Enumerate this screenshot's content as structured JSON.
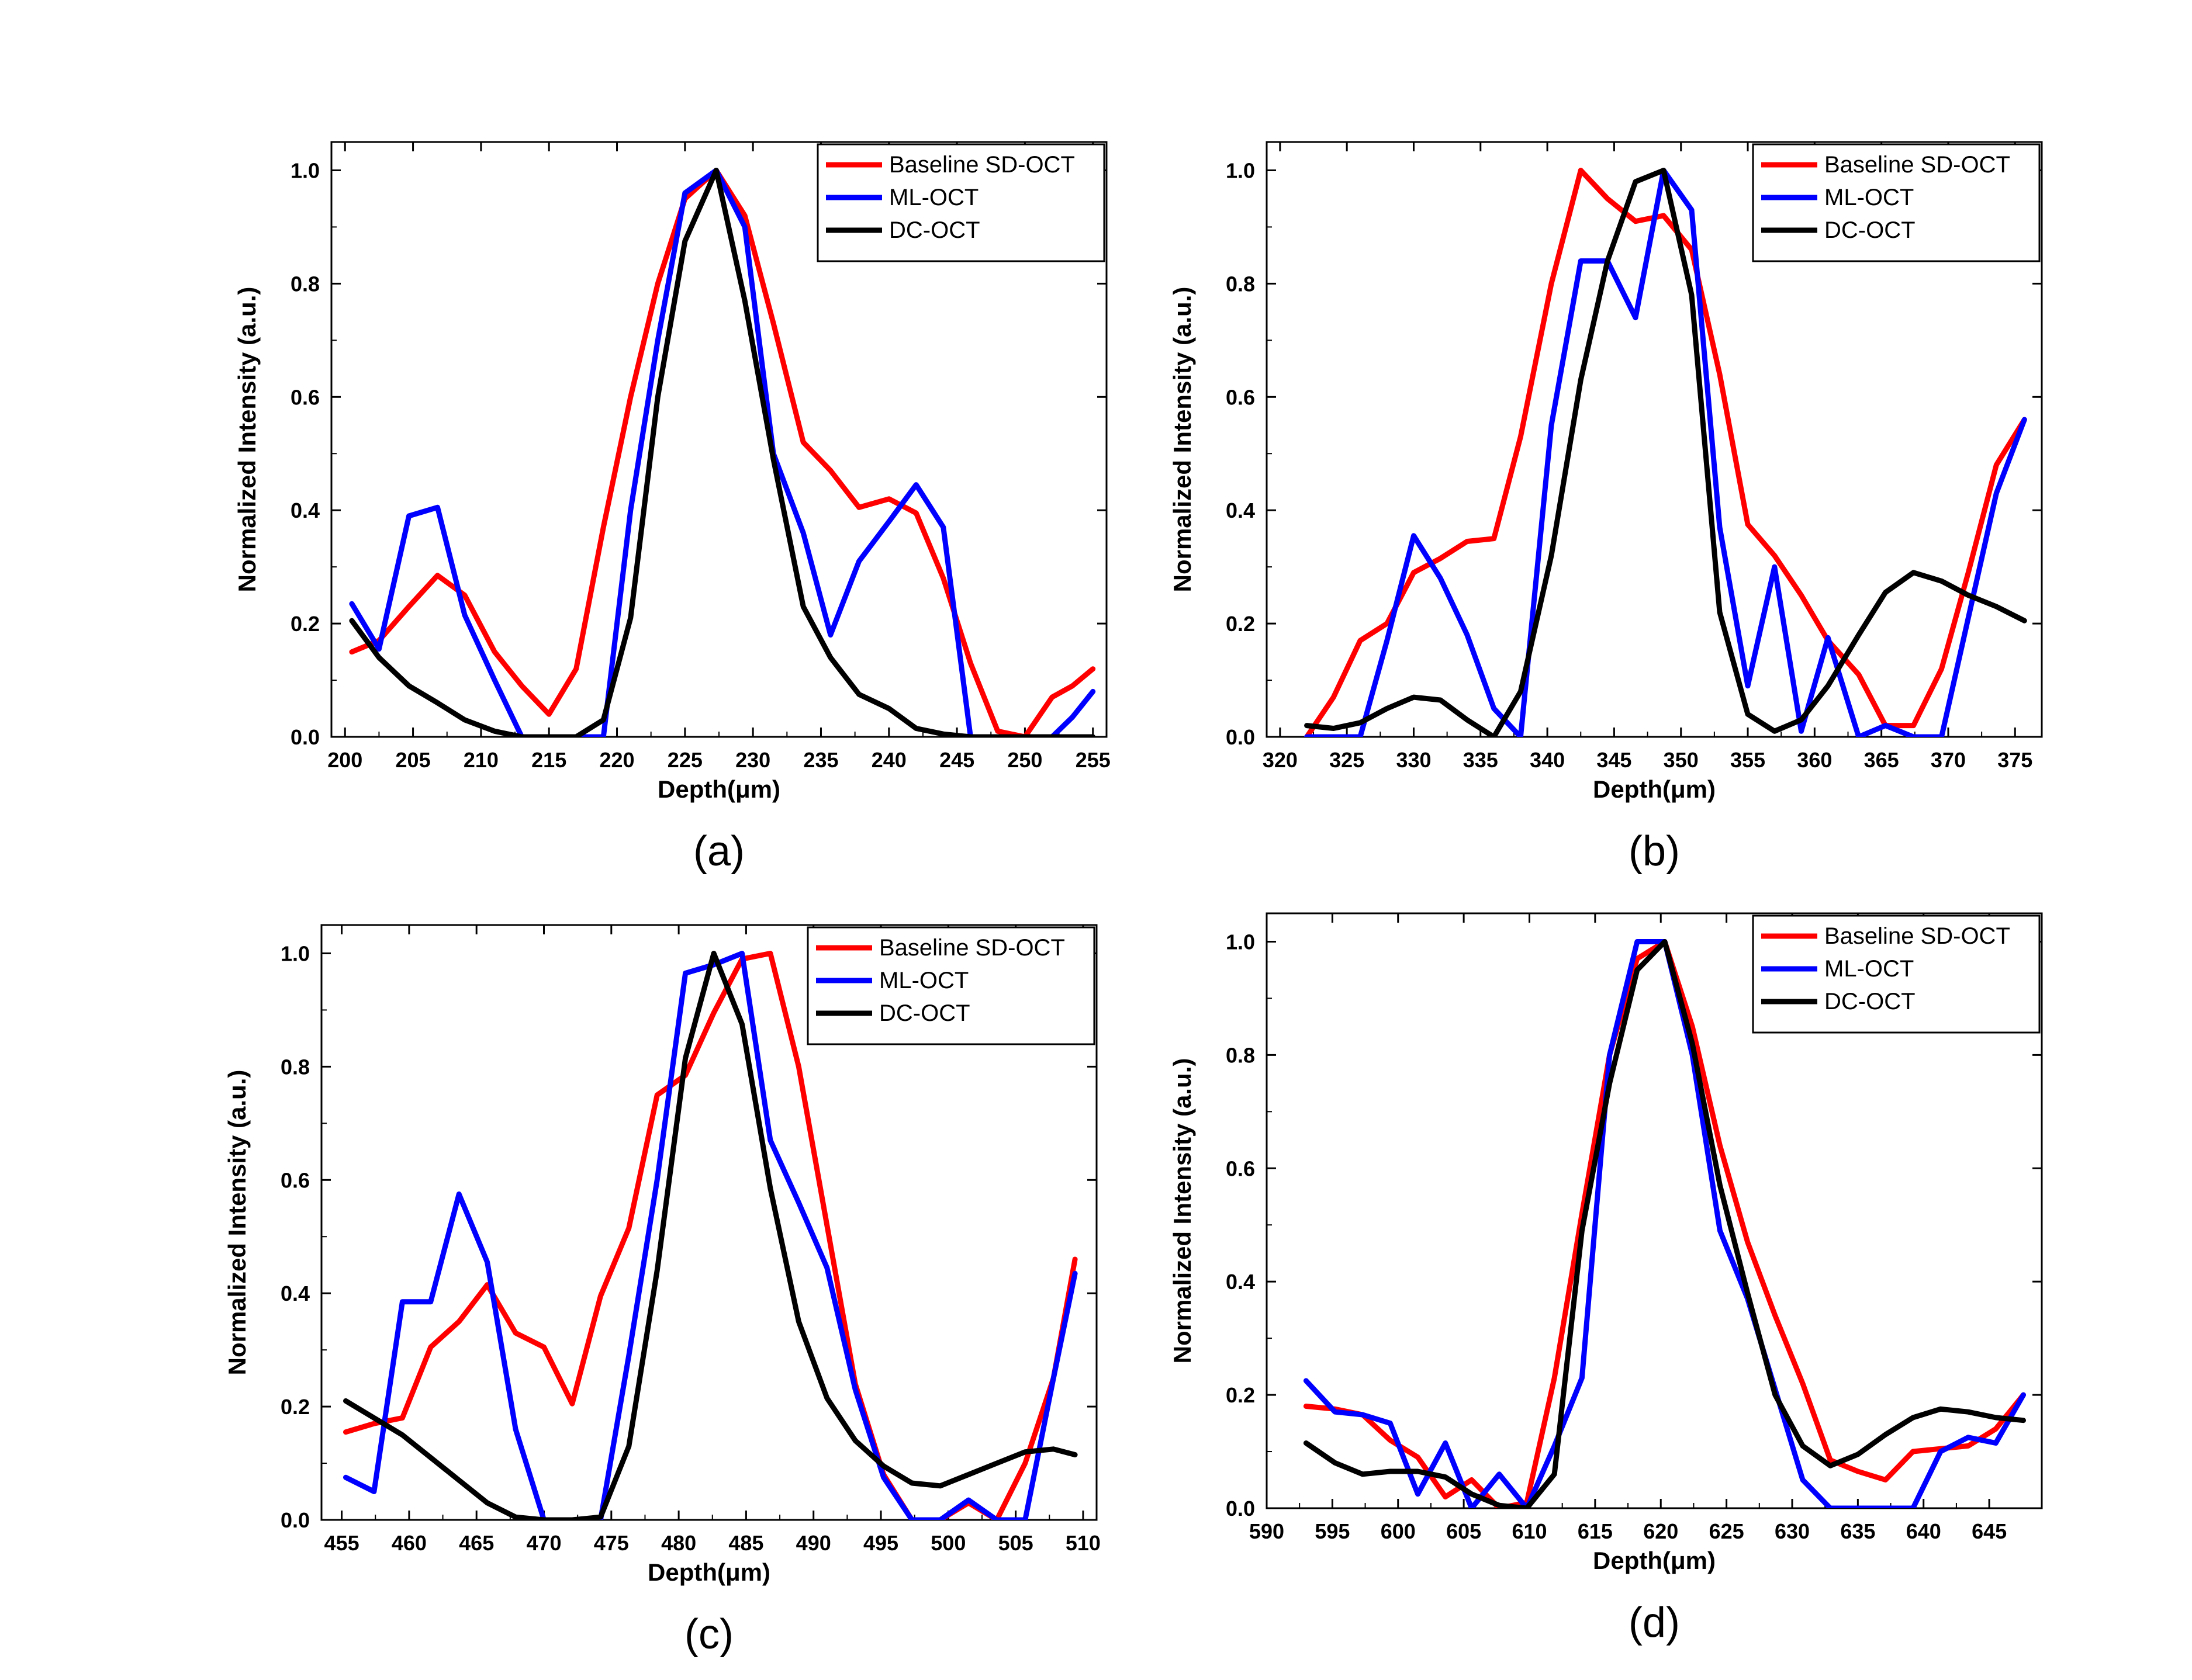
{
  "figure": {
    "title": ""
  },
  "chart_data": [
    {
      "type": "line",
      "panel_label": "(a)",
      "xlabel": "Depth(μm)",
      "ylabel": "Normalized Intensity (a.u.)",
      "xlim": [
        199,
        256
      ],
      "ylim": [
        0,
        1.05
      ],
      "xticks": [
        200,
        205,
        210,
        215,
        220,
        225,
        230,
        235,
        240,
        245,
        250,
        255
      ],
      "yticks": [
        0.0,
        0.2,
        0.4,
        0.6,
        0.8,
        1.0
      ],
      "ytick_labels": [
        "0.0",
        "0.2",
        "0.4",
        "0.6",
        "0.8",
        "1.0"
      ],
      "legend_position": "top-right",
      "series": [
        {
          "name": "Baseline SD-OCT",
          "color": "#ff0000",
          "x": [
            200.5,
            202.5,
            204.7,
            206.8,
            208.8,
            211,
            213,
            215,
            217,
            219,
            221,
            223,
            225,
            227.3,
            229.4,
            231.5,
            233.7,
            235.7,
            237.8,
            240,
            242,
            244,
            246,
            248,
            250,
            252,
            253.5,
            255
          ],
          "y": [
            0.15,
            0.17,
            0.23,
            0.285,
            0.25,
            0.15,
            0.09,
            0.04,
            0.12,
            0.37,
            0.6,
            0.8,
            0.95,
            1.0,
            0.92,
            0.73,
            0.52,
            0.47,
            0.405,
            0.42,
            0.395,
            0.28,
            0.13,
            0.01,
            0.0,
            0.07,
            0.09,
            0.12
          ]
        },
        {
          "name": "ML-OCT",
          "color": "#0000ff",
          "x": [
            200.5,
            202.5,
            204.7,
            206.8,
            208.8,
            211,
            213,
            215,
            217,
            219,
            221,
            223,
            225,
            227.3,
            229.4,
            231.5,
            233.7,
            235.7,
            237.8,
            240,
            242,
            244,
            246,
            248,
            250,
            252,
            253.5,
            255
          ],
          "y": [
            0.235,
            0.155,
            0.39,
            0.405,
            0.215,
            0.1,
            0.0,
            0.0,
            0.0,
            0.0,
            0.4,
            0.7,
            0.96,
            1.0,
            0.9,
            0.5,
            0.36,
            0.18,
            0.31,
            0.38,
            0.445,
            0.37,
            0.0,
            0.0,
            0.0,
            0.0,
            0.035,
            0.08
          ]
        },
        {
          "name": "DC-OCT",
          "color": "#000000",
          "x": [
            200.5,
            202.5,
            204.7,
            206.8,
            208.8,
            211,
            213,
            215,
            217,
            219,
            221,
            223,
            225,
            227.3,
            229.4,
            231.5,
            233.7,
            235.7,
            237.8,
            240,
            242,
            244,
            246,
            248,
            250,
            252,
            253.5,
            255
          ],
          "y": [
            0.205,
            0.14,
            0.09,
            0.06,
            0.03,
            0.01,
            0.0,
            0.0,
            0.0,
            0.03,
            0.21,
            0.6,
            0.875,
            1.0,
            0.77,
            0.49,
            0.23,
            0.14,
            0.075,
            0.05,
            0.015,
            0.005,
            0.0,
            0.0,
            0.0,
            0.0,
            0.0,
            0.0
          ]
        }
      ]
    },
    {
      "type": "line",
      "panel_label": "(b)",
      "xlabel": "Depth(μm)",
      "ylabel": "Normalized Intensity (a.u.)",
      "xlim": [
        319,
        377
      ],
      "ylim": [
        0,
        1.05
      ],
      "xticks": [
        320,
        325,
        330,
        335,
        340,
        345,
        350,
        355,
        360,
        365,
        370,
        375
      ],
      "yticks": [
        0.0,
        0.2,
        0.4,
        0.6,
        0.8,
        1.0
      ],
      "ytick_labels": [
        "0.0",
        "0.2",
        "0.4",
        "0.6",
        "0.8",
        "1.0"
      ],
      "legend_position": "top-right",
      "series": [
        {
          "name": "Baseline SD-OCT",
          "color": "#ff0000",
          "x": [
            322,
            324,
            326,
            328,
            330,
            332,
            334,
            336,
            338,
            340.3,
            342.5,
            344.5,
            346.6,
            348.7,
            350.8,
            352.9,
            355,
            357,
            359,
            361,
            363.3,
            365.3,
            367.4,
            369.5,
            371.5,
            373.6,
            375.7
          ],
          "y": [
            0.0,
            0.07,
            0.17,
            0.2,
            0.29,
            0.315,
            0.345,
            0.35,
            0.53,
            0.8,
            1.0,
            0.95,
            0.91,
            0.92,
            0.86,
            0.64,
            0.375,
            0.32,
            0.25,
            0.17,
            0.11,
            0.02,
            0.02,
            0.12,
            0.29,
            0.48,
            0.56
          ]
        },
        {
          "name": "ML-OCT",
          "color": "#0000ff",
          "x": [
            322,
            324,
            326,
            328,
            330,
            332,
            334,
            336,
            338,
            340.3,
            342.5,
            344.5,
            346.6,
            348.7,
            350.8,
            352.9,
            355,
            357,
            359,
            361,
            363.3,
            365.3,
            367.4,
            369.5,
            371.5,
            373.6,
            375.7
          ],
          "y": [
            0.0,
            0.0,
            0.0,
            0.17,
            0.355,
            0.28,
            0.18,
            0.05,
            0.0,
            0.55,
            0.84,
            0.84,
            0.74,
            1.0,
            0.93,
            0.37,
            0.09,
            0.3,
            0.01,
            0.175,
            0.0,
            0.02,
            0.0,
            0.0,
            0.21,
            0.43,
            0.56
          ]
        },
        {
          "name": "DC-OCT",
          "color": "#000000",
          "x": [
            322,
            324,
            326,
            328,
            330,
            332,
            334,
            336,
            338,
            340.3,
            342.5,
            344.5,
            346.6,
            348.7,
            350.8,
            352.9,
            355,
            357,
            359,
            361,
            363.3,
            365.3,
            367.4,
            369.5,
            371.5,
            373.6,
            375.7
          ],
          "y": [
            0.02,
            0.015,
            0.025,
            0.05,
            0.07,
            0.065,
            0.03,
            0.0,
            0.08,
            0.32,
            0.63,
            0.84,
            0.98,
            1.0,
            0.78,
            0.22,
            0.04,
            0.01,
            0.03,
            0.09,
            0.18,
            0.255,
            0.29,
            0.275,
            0.25,
            0.23,
            0.205
          ]
        }
      ]
    },
    {
      "type": "line",
      "panel_label": "(c)",
      "xlabel": "Depth(μm)",
      "ylabel": "Normalized Intensity (a.u.)",
      "xlim": [
        453.5,
        511
      ],
      "ylim": [
        0,
        1.05
      ],
      "xticks": [
        455,
        460,
        465,
        470,
        475,
        480,
        485,
        490,
        495,
        500,
        505,
        510
      ],
      "yticks": [
        0.0,
        0.2,
        0.4,
        0.6,
        0.8,
        1.0
      ],
      "ytick_labels": [
        "0.0",
        "0.2",
        "0.4",
        "0.6",
        "0.8",
        "1.0"
      ],
      "legend_position": "top-right",
      "series": [
        {
          "name": "Baseline SD-OCT",
          "color": "#ff0000",
          "x": [
            455.3,
            457.4,
            459.5,
            461.6,
            463.7,
            465.8,
            467.9,
            470,
            472.1,
            474.2,
            476.3,
            478.4,
            480.5,
            482.6,
            484.7,
            486.8,
            488.9,
            491,
            493.1,
            495.2,
            497.3,
            499.4,
            501.5,
            503.6,
            505.7,
            507.8,
            509.4
          ],
          "y": [
            0.155,
            0.17,
            0.18,
            0.305,
            0.35,
            0.415,
            0.33,
            0.305,
            0.205,
            0.395,
            0.515,
            0.75,
            0.785,
            0.895,
            0.99,
            1.0,
            0.8,
            0.52,
            0.24,
            0.08,
            0.0,
            0.0,
            0.03,
            0.0,
            0.1,
            0.25,
            0.46
          ]
        },
        {
          "name": "ML-OCT",
          "color": "#0000ff",
          "x": [
            455.3,
            457.4,
            459.5,
            461.6,
            463.7,
            465.8,
            467.9,
            470,
            472.1,
            474.2,
            476.3,
            478.4,
            480.5,
            482.6,
            484.7,
            486.8,
            488.9,
            491,
            493.1,
            495.2,
            497.3,
            499.4,
            501.5,
            503.6,
            505.7,
            507.8,
            509.4
          ],
          "y": [
            0.075,
            0.05,
            0.385,
            0.385,
            0.575,
            0.455,
            0.16,
            0.0,
            0.0,
            0.0,
            0.29,
            0.6,
            0.965,
            0.98,
            1.0,
            0.67,
            0.56,
            0.445,
            0.23,
            0.075,
            0.0,
            0.0,
            0.035,
            0.0,
            0.0,
            0.25,
            0.435
          ]
        },
        {
          "name": "DC-OCT",
          "color": "#000000",
          "x": [
            455.3,
            457.4,
            459.5,
            461.6,
            463.7,
            465.8,
            467.9,
            470,
            472.1,
            474.2,
            476.3,
            478.4,
            480.5,
            482.6,
            484.7,
            486.8,
            488.9,
            491,
            493.1,
            495.2,
            497.3,
            499.4,
            501.5,
            503.6,
            505.7,
            507.8,
            509.4
          ],
          "y": [
            0.21,
            0.18,
            0.15,
            0.11,
            0.07,
            0.03,
            0.005,
            0.0,
            0.0,
            0.005,
            0.13,
            0.44,
            0.815,
            1.0,
            0.875,
            0.585,
            0.35,
            0.215,
            0.14,
            0.095,
            0.065,
            0.06,
            0.08,
            0.1,
            0.12,
            0.125,
            0.115
          ]
        }
      ]
    },
    {
      "type": "line",
      "panel_label": "(d)",
      "xlabel": "Depth(μm)",
      "ylabel": "Normalized Intensity (a.u.)",
      "xlim": [
        590,
        649
      ],
      "ylim": [
        0,
        1.05
      ],
      "xticks": [
        590,
        595,
        600,
        605,
        610,
        615,
        620,
        625,
        630,
        635,
        640,
        645
      ],
      "yticks": [
        0.0,
        0.2,
        0.4,
        0.6,
        0.8,
        1.0
      ],
      "ytick_labels": [
        "0.0",
        "0.2",
        "0.4",
        "0.6",
        "0.8",
        "1.0"
      ],
      "legend_position": "top-right",
      "series": [
        {
          "name": "Baseline SD-OCT",
          "color": "#ff0000",
          "x": [
            593,
            595.2,
            597.3,
            599.4,
            601.5,
            603.6,
            605.6,
            607.7,
            609.8,
            611.9,
            614,
            616.1,
            618.2,
            620.3,
            622.4,
            624.5,
            626.6,
            628.7,
            630.8,
            632.9,
            635,
            637.1,
            639.2,
            641.3,
            643.4,
            645.5,
            647.6
          ],
          "y": [
            0.18,
            0.175,
            0.165,
            0.12,
            0.09,
            0.02,
            0.05,
            0.0,
            0.01,
            0.23,
            0.52,
            0.8,
            0.97,
            1.0,
            0.85,
            0.64,
            0.47,
            0.34,
            0.22,
            0.085,
            0.065,
            0.05,
            0.1,
            0.105,
            0.11,
            0.14,
            0.2
          ]
        },
        {
          "name": "ML-OCT",
          "color": "#0000ff",
          "x": [
            593,
            595.2,
            597.3,
            599.4,
            601.5,
            603.6,
            605.6,
            607.7,
            609.8,
            611.9,
            614,
            616.1,
            618.2,
            620.3,
            622.4,
            624.5,
            626.6,
            628.7,
            630.8,
            632.9,
            635,
            637.1,
            639.2,
            641.3,
            643.4,
            645.5,
            647.6
          ],
          "y": [
            0.225,
            0.17,
            0.165,
            0.15,
            0.025,
            0.115,
            0.0,
            0.06,
            0.0,
            0.11,
            0.23,
            0.8,
            1.0,
            1.0,
            0.8,
            0.49,
            0.37,
            0.21,
            0.05,
            0.0,
            0.0,
            0.0,
            0.0,
            0.1,
            0.125,
            0.115,
            0.2
          ]
        },
        {
          "name": "DC-OCT",
          "color": "#000000",
          "x": [
            593,
            595.2,
            597.3,
            599.4,
            601.5,
            603.6,
            605.6,
            607.7,
            609.8,
            611.9,
            614,
            616.1,
            618.2,
            620.3,
            622.4,
            624.5,
            626.6,
            628.7,
            630.8,
            632.9,
            635,
            637.1,
            639.2,
            641.3,
            643.4,
            645.5,
            647.6
          ],
          "y": [
            0.115,
            0.08,
            0.06,
            0.065,
            0.065,
            0.055,
            0.025,
            0.005,
            0.0,
            0.06,
            0.49,
            0.75,
            0.95,
            1.0,
            0.82,
            0.57,
            0.38,
            0.2,
            0.11,
            0.075,
            0.095,
            0.13,
            0.16,
            0.175,
            0.17,
            0.16,
            0.155
          ]
        }
      ]
    }
  ]
}
